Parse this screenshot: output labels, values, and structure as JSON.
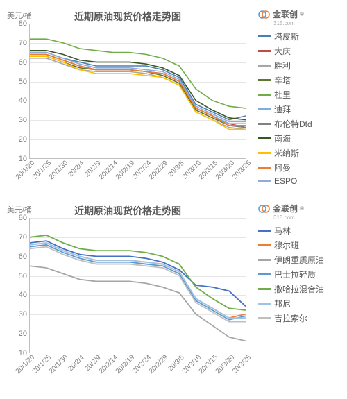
{
  "brand": {
    "name": "金联创",
    "mark": "®",
    "sub": "315.com"
  },
  "panels": [
    {
      "title": "近期原油现货价格走势图",
      "ylabel": "美元/桶",
      "ylim": [
        10,
        80
      ],
      "ytick_step": 10,
      "x_labels": [
        "20/1/20",
        "20/1/25",
        "20/1/30",
        "20/2/4",
        "20/2/9",
        "20/2/14",
        "20/2/19",
        "20/2/24",
        "20/2/29",
        "20/3/5",
        "20/3/10",
        "20/3/15",
        "20/3/20",
        "20/3/25"
      ],
      "grid_color": "#e6e6e6",
      "axis_color": "#bfbfbf",
      "tick_fontsize": 11,
      "title_fontsize": 14,
      "line_width": 1.6,
      "series": [
        {
          "name": "塔皮斯",
          "color": "#4a7ebb",
          "values": [
            65,
            65,
            62,
            60,
            58,
            58,
            58,
            58,
            56,
            52,
            38,
            34,
            30,
            32
          ]
        },
        {
          "name": "大庆",
          "color": "#be4b48",
          "values": [
            64,
            64,
            61,
            58,
            56,
            56,
            56,
            55,
            54,
            50,
            36,
            32,
            28,
            26
          ]
        },
        {
          "name": "胜利",
          "color": "#a6a6a6",
          "values": [
            62,
            62,
            59,
            56,
            55,
            55,
            55,
            54,
            52,
            48,
            34,
            30,
            26,
            25
          ]
        },
        {
          "name": "辛塔",
          "color": "#5f7530",
          "values": [
            63,
            63,
            60,
            57,
            56,
            56,
            56,
            55,
            53,
            49,
            35,
            31,
            27,
            26
          ]
        },
        {
          "name": "杜里",
          "color": "#70ad47",
          "values": [
            72,
            72,
            70,
            67,
            66,
            65,
            65,
            64,
            62,
            58,
            46,
            40,
            37,
            36
          ]
        },
        {
          "name": "迪拜",
          "color": "#7cafdd",
          "values": [
            64,
            64,
            61,
            58,
            56,
            56,
            56,
            55,
            54,
            50,
            36,
            32,
            28,
            28
          ]
        },
        {
          "name": "布伦特Dtd",
          "color": "#808080",
          "values": [
            64,
            64,
            61,
            58,
            56,
            56,
            56,
            55,
            54,
            50,
            36,
            32,
            27,
            26
          ]
        },
        {
          "name": "南海",
          "color": "#385723",
          "values": [
            66,
            66,
            64,
            61,
            60,
            60,
            60,
            59,
            57,
            53,
            40,
            35,
            31,
            30
          ]
        },
        {
          "name": "米纳斯",
          "color": "#ffc000",
          "values": [
            63,
            63,
            60,
            56,
            54,
            54,
            54,
            53,
            52,
            48,
            34,
            30,
            25,
            25
          ]
        },
        {
          "name": "阿曼",
          "color": "#ed7d31",
          "values": [
            64,
            64,
            61,
            58,
            56,
            56,
            56,
            55,
            54,
            50,
            36,
            32,
            27,
            27
          ]
        },
        {
          "name": "ESPO",
          "color": "#8faadc",
          "values": [
            65,
            65,
            62,
            59,
            57,
            57,
            57,
            56,
            55,
            51,
            37,
            33,
            29,
            29
          ]
        }
      ]
    },
    {
      "title": "近期原油现货价格走势图",
      "ylabel": "美元/桶",
      "ylim": [
        10,
        80
      ],
      "ytick_step": 10,
      "x_labels": [
        "20/1/20",
        "20/1/25",
        "20/1/30",
        "20/2/4",
        "20/2/9",
        "20/2/14",
        "20/2/19",
        "20/2/24",
        "20/2/29",
        "20/3/5",
        "20/3/10",
        "20/3/15",
        "20/3/20",
        "20/3/25"
      ],
      "grid_color": "#e6e6e6",
      "axis_color": "#bfbfbf",
      "tick_fontsize": 11,
      "title_fontsize": 14,
      "line_width": 1.8,
      "series": [
        {
          "name": "马林",
          "color": "#4472c4",
          "values": [
            67,
            68,
            64,
            61,
            60,
            60,
            60,
            59,
            57,
            53,
            45,
            44,
            42,
            34
          ]
        },
        {
          "name": "穆尔班",
          "color": "#ed7d31",
          "values": [
            66,
            67,
            63,
            60,
            58,
            58,
            58,
            57,
            56,
            52,
            38,
            33,
            28,
            30
          ]
        },
        {
          "name": "伊朗重质原油",
          "color": "#a6a6a6",
          "values": [
            55,
            54,
            51,
            48,
            47,
            47,
            47,
            46,
            44,
            41,
            30,
            24,
            18,
            16
          ]
        },
        {
          "name": "巴士拉轻质",
          "color": "#5b9bd5",
          "values": [
            65,
            66,
            62,
            59,
            57,
            57,
            57,
            56,
            55,
            51,
            37,
            32,
            27,
            29
          ]
        },
        {
          "name": "撒哈拉混合油",
          "color": "#70ad47",
          "values": [
            70,
            71,
            67,
            64,
            63,
            63,
            63,
            62,
            60,
            56,
            44,
            38,
            33,
            32
          ]
        },
        {
          "name": "邦尼",
          "color": "#9dc3e6",
          "values": [
            66,
            67,
            63,
            60,
            58,
            58,
            58,
            57,
            56,
            52,
            38,
            33,
            28,
            28
          ]
        },
        {
          "name": "吉拉索尔",
          "color": "#bfbfbf",
          "values": [
            64,
            65,
            61,
            58,
            56,
            56,
            56,
            55,
            54,
            50,
            36,
            31,
            26,
            26
          ]
        }
      ]
    }
  ]
}
